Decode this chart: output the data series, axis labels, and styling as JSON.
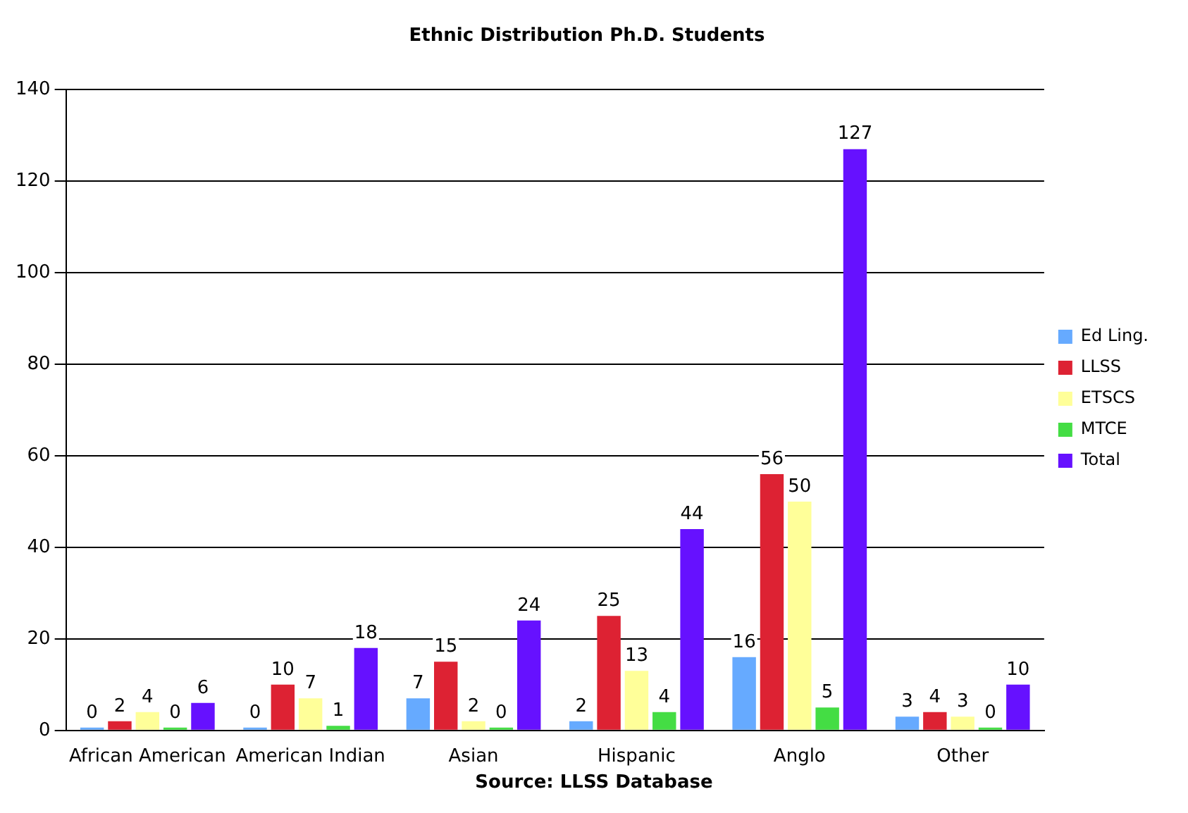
{
  "chart_data": {
    "type": "bar",
    "title": "Ethnic Distribution Ph.D. Students",
    "annotations": [
      "Source: LLSS Database"
    ],
    "categories": [
      "African American",
      "American Indian",
      "Asian",
      "Hispanic",
      "Anglo",
      "Other"
    ],
    "series": [
      {
        "name": "Ed Ling.",
        "color": "#66aaff",
        "values": [
          0,
          0,
          7,
          2,
          16,
          3
        ]
      },
      {
        "name": "LLSS",
        "color": "#dd2233",
        "values": [
          2,
          10,
          15,
          25,
          56,
          4
        ]
      },
      {
        "name": "ETSCS",
        "color": "#ffff99",
        "values": [
          4,
          7,
          2,
          13,
          50,
          3
        ]
      },
      {
        "name": "MTCE",
        "color": "#44dd44",
        "values": [
          0,
          1,
          0,
          4,
          5,
          0
        ]
      },
      {
        "name": "Total",
        "color": "#6611ff",
        "values": [
          6,
          18,
          24,
          44,
          127,
          10
        ]
      }
    ],
    "ylim": [
      0,
      140
    ],
    "yticks": [
      0,
      20,
      40,
      60,
      80,
      100,
      120,
      140
    ],
    "grid": "y",
    "legend": "right",
    "data_labels": true
  }
}
